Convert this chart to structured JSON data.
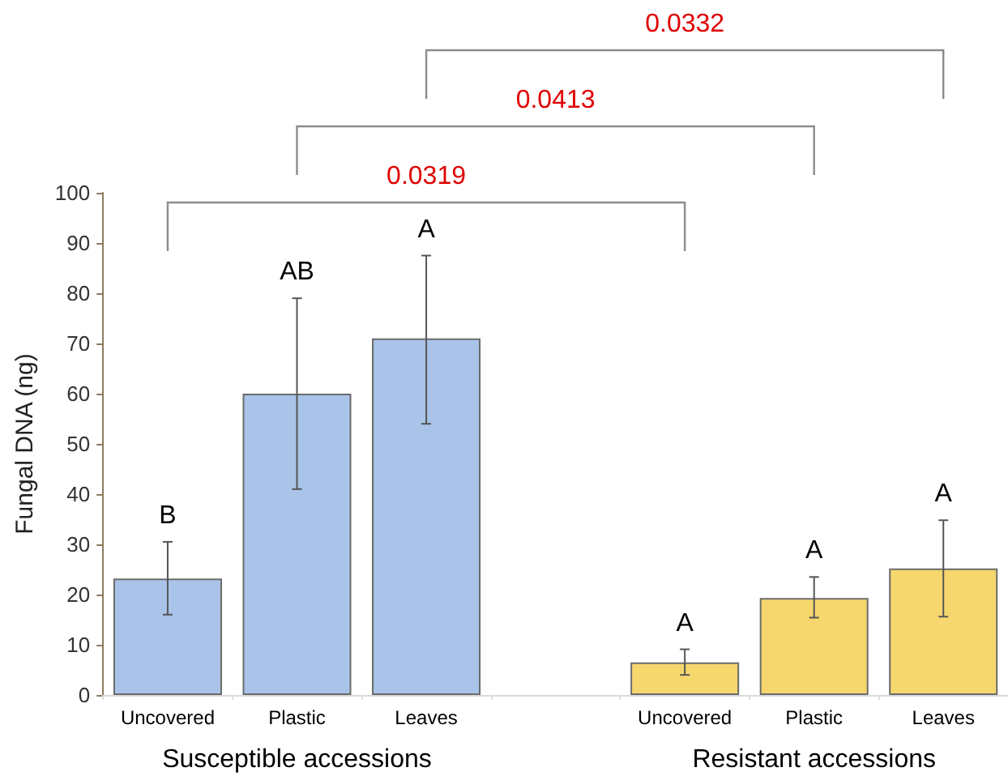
{
  "chart_data": {
    "type": "bar",
    "ylabel": "Fungal DNA (ng)",
    "categories": [
      "Uncovered",
      "Plastic",
      "Leaves",
      null,
      "Uncovered",
      "Plastic",
      "Leaves"
    ],
    "values": [
      23.2,
      60,
      71,
      null,
      6.5,
      19.3,
      25.2
    ],
    "colors": [
      "#a9c4e8",
      "#a9c4e8",
      "#a9c4e8",
      null,
      "#f5d76e",
      "#f5d76e",
      "#f5d76e"
    ],
    "errors": [
      [
        16,
        30.5
      ],
      [
        41,
        79
      ],
      [
        54,
        87.5
      ],
      null,
      [
        4,
        9.1
      ],
      [
        15.4,
        23.5
      ],
      [
        15.6,
        34.8
      ]
    ],
    "ylim": [
      0,
      100
    ],
    "yticks": [
      0,
      10,
      20,
      30,
      40,
      50,
      60,
      70,
      80,
      90,
      100
    ],
    "grid": false,
    "annotations": [
      "Susceptible accessions",
      "Resistant accessions",
      "0.0319",
      "0.0413",
      "0.0332",
      "B",
      "AB",
      "A",
      "A",
      "A",
      "A"
    ]
  }
}
